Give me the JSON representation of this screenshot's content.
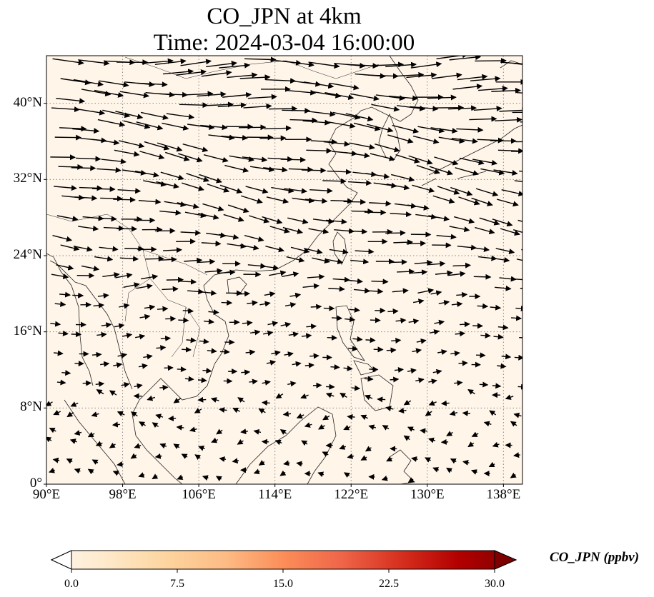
{
  "title_line1": "CO_JPN at 4km",
  "title_line2": "Time: 2024-03-04 16:00:00",
  "map": {
    "lon_range": [
      90,
      140
    ],
    "lat_range": [
      0,
      45
    ],
    "x_ticks": [
      "90°E",
      "98°E",
      "106°E",
      "114°E",
      "122°E",
      "130°E",
      "138°E"
    ],
    "y_ticks": [
      "0°",
      "8°N",
      "16°N",
      "24°N",
      "32°N",
      "40°N"
    ],
    "background_color": "#fff5e9",
    "gridline_color": "#888888"
  },
  "colorbar": {
    "label": "CO_JPN (ppbv)",
    "ticks": [
      "0.0",
      "7.5",
      "15.0",
      "22.5",
      "30.0"
    ],
    "vmin": 0,
    "vmax": 30,
    "colormap": [
      "#fff7ec",
      "#fee8c8",
      "#fdd49e",
      "#fdbb84",
      "#fc8d59",
      "#ef6548",
      "#d7301f",
      "#b30000",
      "#7f0000"
    ]
  }
}
